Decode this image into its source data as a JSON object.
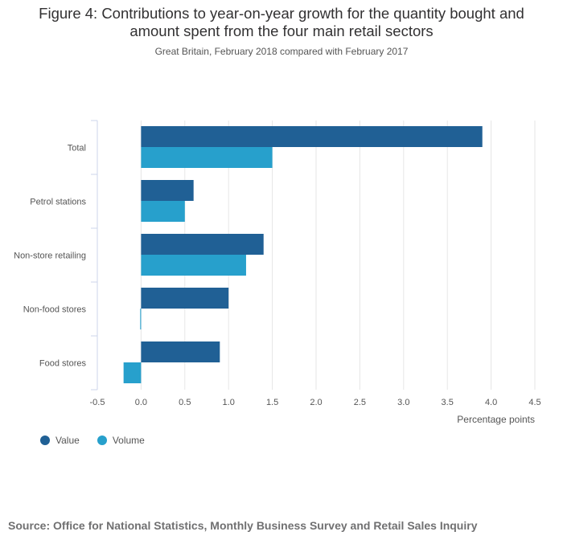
{
  "chart_data": {
    "type": "bar",
    "orientation": "horizontal",
    "title_lines": [
      "Figure 4: Contributions to year-on-year growth for the quantity bought and",
      "amount spent from the four main retail sectors"
    ],
    "subtitle": "Great Britain, February 2018 compared with February 2017",
    "categories": [
      "Total",
      "Petrol stations",
      "Non-store retailing",
      "Non-food stores",
      "Food stores"
    ],
    "series": [
      {
        "name": "Value",
        "color": "#206095",
        "values": [
          3.9,
          0.6,
          1.4,
          1.0,
          0.9
        ]
      },
      {
        "name": "Volume",
        "color": "#27a0cc",
        "values": [
          1.5,
          0.5,
          1.2,
          -0.01,
          -0.2
        ]
      }
    ],
    "xlabel": "Percentage points",
    "xlim": [
      -0.5,
      4.5
    ],
    "xticks": [
      -0.5,
      0.0,
      0.5,
      1.0,
      1.5,
      2.0,
      2.5,
      3.0,
      3.5,
      4.0,
      4.5
    ],
    "xtick_labels": [
      "-0.5",
      "0.0",
      "0.5",
      "1.0",
      "1.5",
      "2.0",
      "2.5",
      "3.0",
      "3.5",
      "4.0",
      "4.5"
    ],
    "grid": true,
    "legend_position": "bottom-left"
  },
  "source": "Source: Office for National Statistics, Monthly Business Survey and Retail Sales Inquiry"
}
